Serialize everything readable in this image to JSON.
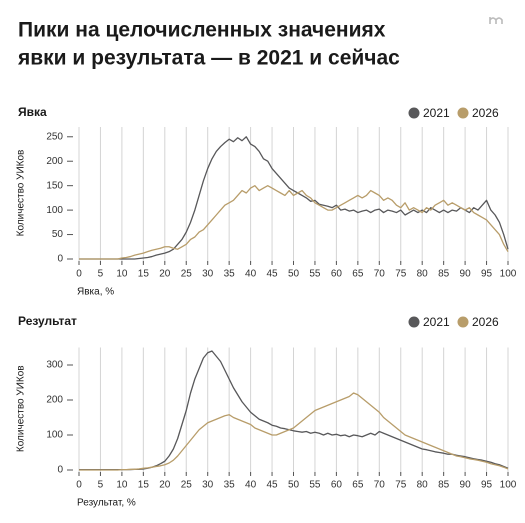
{
  "title": [
    "Пики на целочисленных значениях",
    "явки и результата — в 2021 и сейчас"
  ],
  "chart_data": [
    {
      "type": "line",
      "title": "Явка",
      "xlabel": "Явка, %",
      "ylabel": "Количество УИКов",
      "legend": "top-right",
      "grid": "x",
      "xlim": [
        0,
        100
      ],
      "xticks": [
        0,
        5,
        10,
        15,
        20,
        25,
        30,
        35,
        40,
        45,
        50,
        55,
        60,
        65,
        70,
        75,
        80,
        85,
        90,
        95,
        100
      ],
      "ylim": [
        0,
        270
      ],
      "yticks": [
        0,
        50,
        100,
        150,
        200,
        250
      ],
      "x": [
        0,
        1,
        2,
        3,
        4,
        5,
        6,
        7,
        8,
        9,
        10,
        11,
        12,
        13,
        14,
        15,
        16,
        17,
        18,
        19,
        20,
        21,
        22,
        23,
        24,
        25,
        26,
        27,
        28,
        29,
        30,
        31,
        32,
        33,
        34,
        35,
        36,
        37,
        38,
        39,
        40,
        41,
        42,
        43,
        44,
        45,
        46,
        47,
        48,
        49,
        50,
        51,
        52,
        53,
        54,
        55,
        56,
        57,
        58,
        59,
        60,
        61,
        62,
        63,
        64,
        65,
        66,
        67,
        68,
        69,
        70,
        71,
        72,
        73,
        74,
        75,
        76,
        77,
        78,
        79,
        80,
        81,
        82,
        83,
        84,
        85,
        86,
        87,
        88,
        89,
        90,
        91,
        92,
        93,
        94,
        95,
        96,
        97,
        98,
        99,
        100
      ],
      "series": [
        {
          "name": "2021",
          "color": "#58585a",
          "values": [
            0,
            0,
            0,
            0,
            0,
            0,
            0,
            0,
            0,
            0,
            0,
            0,
            0,
            0,
            1,
            2,
            3,
            5,
            8,
            10,
            12,
            15,
            20,
            30,
            40,
            55,
            75,
            100,
            130,
            160,
            185,
            205,
            220,
            230,
            238,
            245,
            240,
            248,
            242,
            250,
            235,
            230,
            220,
            205,
            200,
            185,
            175,
            165,
            155,
            145,
            140,
            135,
            130,
            125,
            118,
            120,
            112,
            110,
            108,
            105,
            110,
            100,
            102,
            98,
            100,
            95,
            98,
            100,
            95,
            100,
            102,
            95,
            100,
            98,
            95,
            100,
            90,
            95,
            100,
            95,
            100,
            95,
            105,
            100,
            95,
            100,
            95,
            100,
            98,
            105,
            100,
            95,
            105,
            100,
            110,
            120,
            100,
            90,
            75,
            50,
            20
          ]
        },
        {
          "name": "2026",
          "color": "#b89d6a",
          "values": [
            0,
            0,
            0,
            0,
            0,
            0,
            0,
            0,
            0,
            0,
            2,
            3,
            5,
            8,
            10,
            12,
            15,
            18,
            20,
            22,
            25,
            25,
            22,
            20,
            25,
            30,
            40,
            45,
            55,
            60,
            70,
            80,
            90,
            100,
            110,
            115,
            120,
            130,
            140,
            135,
            145,
            150,
            140,
            145,
            150,
            145,
            140,
            135,
            130,
            140,
            130,
            135,
            140,
            130,
            125,
            115,
            110,
            105,
            100,
            100,
            105,
            110,
            115,
            120,
            125,
            130,
            125,
            130,
            140,
            135,
            130,
            120,
            125,
            120,
            110,
            105,
            115,
            100,
            105,
            100,
            95,
            105,
            100,
            110,
            115,
            120,
            110,
            115,
            110,
            105,
            100,
            105,
            95,
            90,
            85,
            80,
            70,
            60,
            50,
            30,
            15
          ]
        }
      ]
    },
    {
      "type": "line",
      "title": "Результат",
      "xlabel": "Результат, %",
      "ylabel": "Количество УИКов",
      "legend": "top-right",
      "grid": "x",
      "xlim": [
        0,
        100
      ],
      "xticks": [
        0,
        5,
        10,
        15,
        20,
        25,
        30,
        35,
        40,
        45,
        50,
        55,
        60,
        65,
        70,
        75,
        80,
        85,
        90,
        95,
        100
      ],
      "ylim": [
        0,
        350
      ],
      "yticks": [
        0,
        100,
        200,
        300
      ],
      "x": [
        0,
        1,
        2,
        3,
        4,
        5,
        6,
        7,
        8,
        9,
        10,
        11,
        12,
        13,
        14,
        15,
        16,
        17,
        18,
        19,
        20,
        21,
        22,
        23,
        24,
        25,
        26,
        27,
        28,
        29,
        30,
        31,
        32,
        33,
        34,
        35,
        36,
        37,
        38,
        39,
        40,
        41,
        42,
        43,
        44,
        45,
        46,
        47,
        48,
        49,
        50,
        51,
        52,
        53,
        54,
        55,
        56,
        57,
        58,
        59,
        60,
        61,
        62,
        63,
        64,
        65,
        66,
        67,
        68,
        69,
        70,
        71,
        72,
        73,
        74,
        75,
        76,
        77,
        78,
        79,
        80,
        81,
        82,
        83,
        84,
        85,
        86,
        87,
        88,
        89,
        90,
        91,
        92,
        93,
        94,
        95,
        96,
        97,
        98,
        99,
        100
      ],
      "series": [
        {
          "name": "2021",
          "color": "#58585a",
          "values": [
            1,
            1,
            1,
            1,
            1,
            1,
            1,
            1,
            1,
            1,
            1,
            1,
            1,
            2,
            2,
            3,
            5,
            8,
            12,
            18,
            25,
            40,
            60,
            90,
            130,
            170,
            220,
            260,
            290,
            320,
            335,
            340,
            325,
            310,
            285,
            260,
            235,
            215,
            195,
            180,
            165,
            155,
            145,
            140,
            135,
            128,
            125,
            120,
            118,
            115,
            112,
            110,
            108,
            110,
            105,
            108,
            105,
            100,
            105,
            100,
            102,
            98,
            100,
            95,
            100,
            98,
            95,
            100,
            105,
            100,
            110,
            105,
            100,
            95,
            90,
            85,
            80,
            75,
            70,
            65,
            60,
            58,
            55,
            52,
            50,
            48,
            45,
            45,
            42,
            40,
            38,
            35,
            32,
            30,
            28,
            25,
            22,
            18,
            15,
            10,
            5
          ]
        },
        {
          "name": "2026",
          "color": "#b89d6a",
          "values": [
            0,
            0,
            0,
            0,
            0,
            0,
            0,
            0,
            0,
            0,
            1,
            1,
            2,
            2,
            3,
            5,
            6,
            8,
            10,
            12,
            15,
            20,
            28,
            40,
            55,
            70,
            85,
            100,
            115,
            125,
            135,
            140,
            145,
            150,
            155,
            158,
            150,
            145,
            140,
            135,
            130,
            120,
            115,
            110,
            105,
            100,
            100,
            105,
            110,
            115,
            120,
            130,
            140,
            150,
            160,
            170,
            175,
            180,
            185,
            190,
            195,
            200,
            205,
            210,
            220,
            215,
            205,
            195,
            185,
            175,
            165,
            150,
            140,
            130,
            120,
            110,
            100,
            95,
            90,
            85,
            80,
            75,
            70,
            65,
            60,
            55,
            50,
            45,
            40,
            38,
            35,
            32,
            30,
            28,
            25,
            22,
            18,
            15,
            12,
            8,
            3
          ]
        }
      ]
    }
  ]
}
